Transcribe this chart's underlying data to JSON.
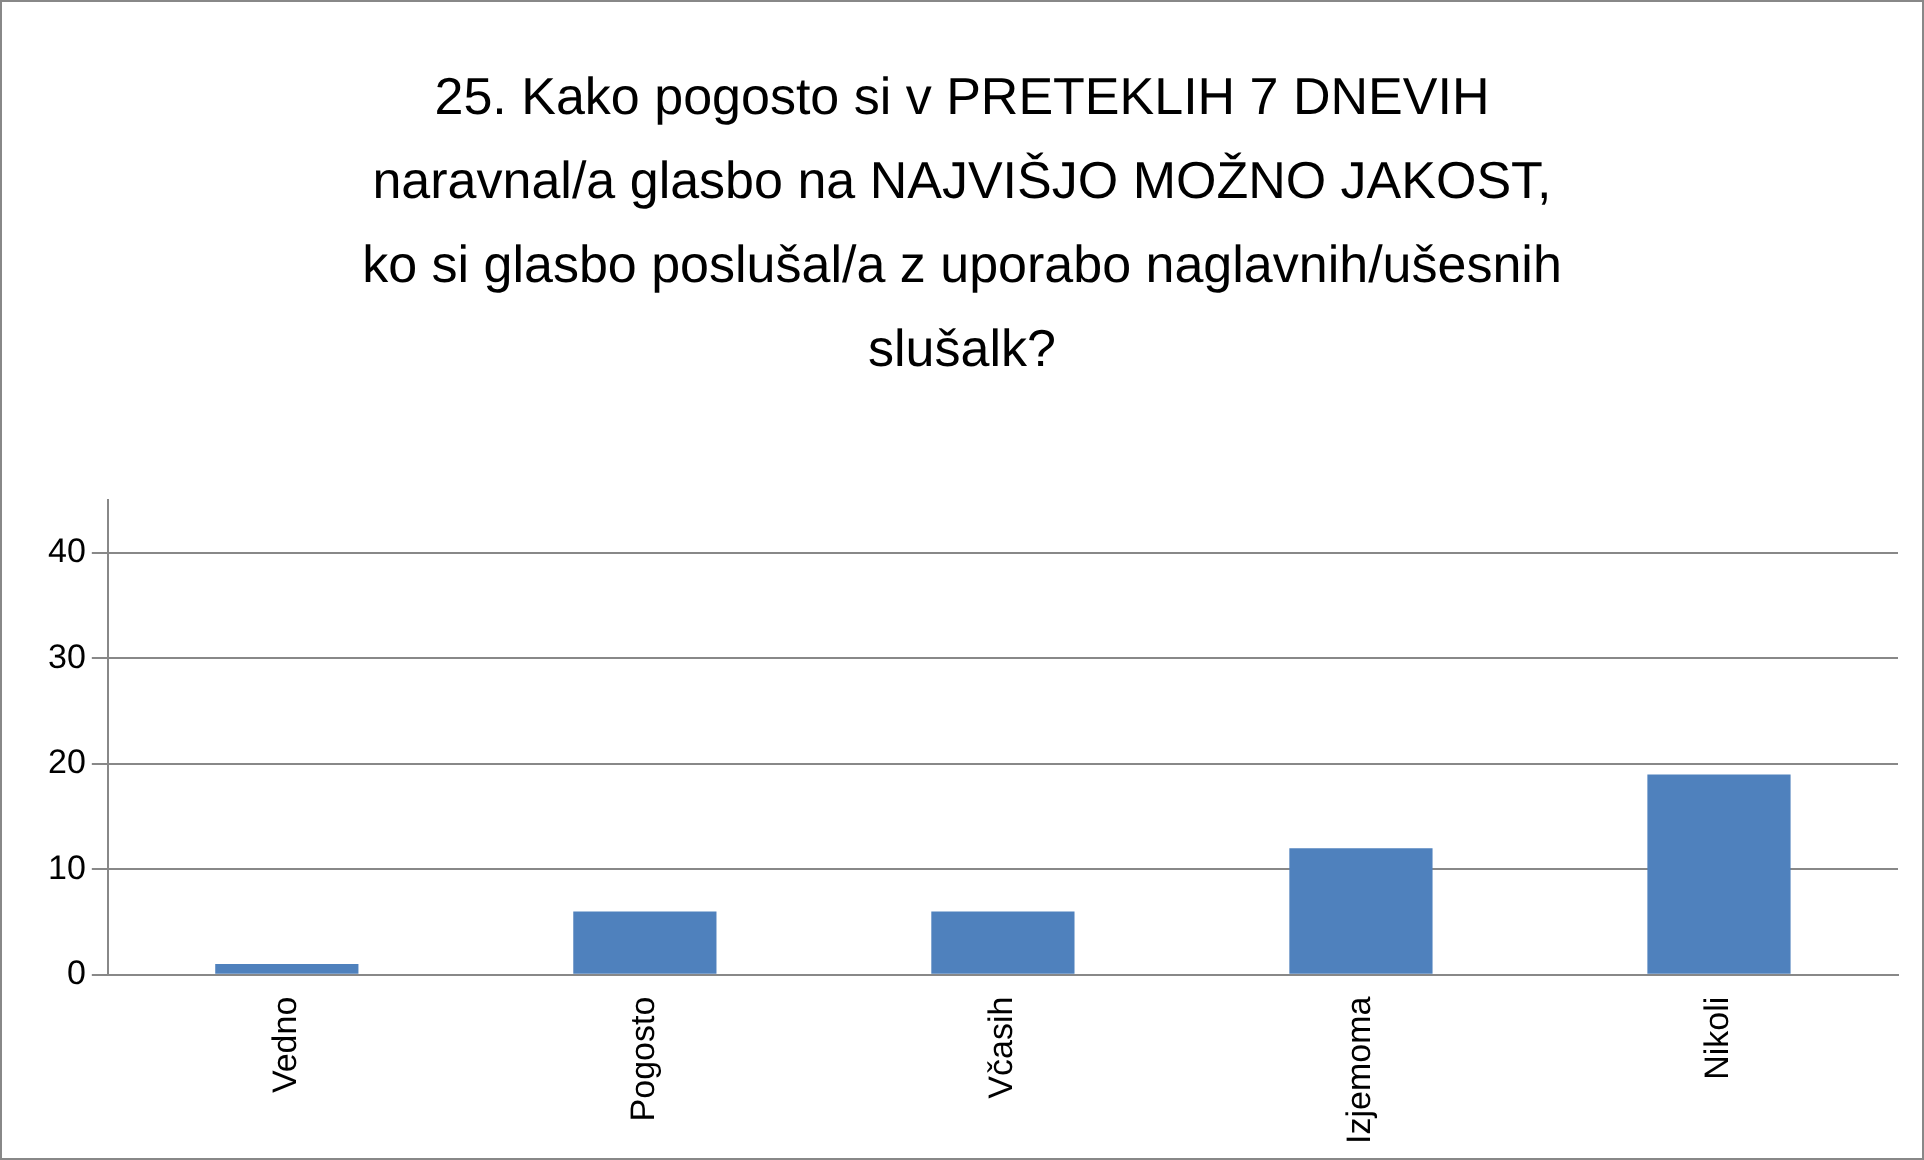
{
  "chart_data": {
    "type": "bar",
    "title": "25. Kako pogosto si v PRETEKLIH 7 DNEVIH naravnal/a glasbo na NAJVIŠJO MOŽNO JAKOST, ko si glasbo poslušal/a z uporabo naglavnih/ušesnih slušalk?",
    "categories": [
      "Vedno",
      "Pogosto",
      "Včasih",
      "Izjemoma",
      "Nikoli"
    ],
    "values": [
      1,
      6,
      6,
      12,
      19
    ],
    "color": "#4f81bd",
    "ylim": [
      0,
      45
    ],
    "yticks": [
      0,
      10,
      20,
      30,
      40
    ],
    "grid": "y"
  }
}
